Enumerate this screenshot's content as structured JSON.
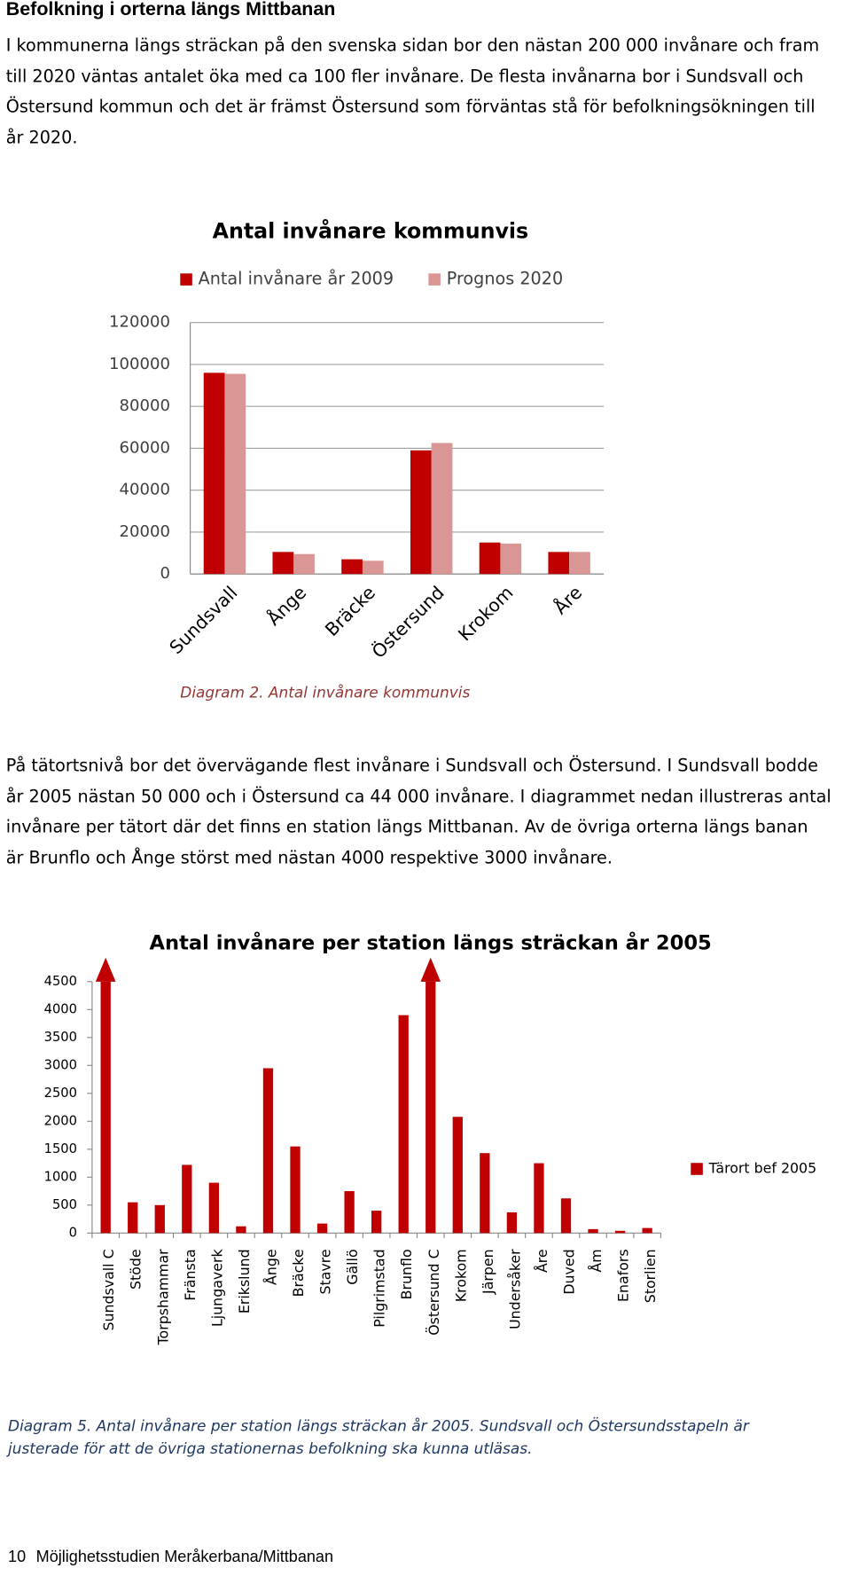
{
  "heading": "Befolkning i orterna längs Mittbanan",
  "intro": [
    "I kommunerna längs sträckan på den svenska sidan bor den nästan 200 000 invånare och fram",
    "till 2020 väntas antalet öka med ca 100 fler invånare. De flesta invånarna bor i Sundsvall och",
    "Östersund kommun och det är främst Östersund som förväntas stå för befolkningsökningen till",
    "år 2020."
  ],
  "chart_data": [
    {
      "type": "bar",
      "title": "Antal invånare kommunvis",
      "categories": [
        "Sundsvall",
        "Ånge",
        "Bräcke",
        "Östersund",
        "Krokom",
        "Åre"
      ],
      "series": [
        {
          "name": "Antal invånare år 2009",
          "color": "#c00000",
          "values": [
            96000,
            10500,
            7000,
            59000,
            15000,
            10500
          ]
        },
        {
          "name": "Prognos 2020",
          "color": "#d99694",
          "values": [
            95500,
            9500,
            6300,
            62500,
            14500,
            10500
          ]
        }
      ],
      "ylim": [
        0,
        120000
      ],
      "yticks": [
        0,
        20000,
        40000,
        60000,
        80000,
        100000,
        120000
      ],
      "grid": true,
      "legend": "top"
    },
    {
      "type": "bar",
      "title": "Antal invånare per station längs sträckan år 2005",
      "categories": [
        "Sundsvall C",
        "Stöde",
        "Torpshammar",
        "Fränsta",
        "Ljungaverk",
        "Erikslund",
        "Ånge",
        "Bräcke",
        "Stavre",
        "Gällö",
        "Pilgrimstad",
        "Brunflo",
        "Östersund C",
        "Krokom",
        "Järpen",
        "Undersåker",
        "Åre",
        "Duved",
        "Åm",
        "Enafors",
        "Storlien"
      ],
      "series": [
        {
          "name": "Tärort bef 2005",
          "color": "#c00000",
          "values": [
            4500,
            550,
            500,
            1220,
            900,
            120,
            2950,
            1550,
            170,
            750,
            400,
            3900,
            4500,
            2080,
            1430,
            370,
            1250,
            620,
            70,
            40,
            90
          ]
        }
      ],
      "ylim": [
        0,
        4500
      ],
      "yticks": [
        0,
        500,
        1000,
        1500,
        2000,
        2500,
        3000,
        3500,
        4000,
        4500
      ],
      "grid": false,
      "legend": "right"
    }
  ],
  "caption_1": "Diagram 2. Antal invånare kommunvis",
  "body": [
    "På tätortsnivå bor det övervägande flest invånare i Sundsvall och Östersund. I Sundsvall bodde",
    "år 2005 nästan 50 000 och i Östersund ca 44 000 invånare. I diagrammet nedan illustreras antal",
    "invånare per tätort där det finns en station längs Mittbanan. Av de övriga orterna längs banan",
    "är Brunflo och Ånge störst med nästan 4000 respektive 3000 invånare."
  ],
  "caption_2": [
    "Diagram 5. Antal invånare per station längs sträckan år 2005. Sundsvall och Östersundsstapeln är",
    "justerade för att de övriga stationernas befolkning ska kunna utläsas."
  ],
  "footer": {
    "page": "10",
    "title": "Möjlighetsstudien Meråkerbana/Mittbanan"
  }
}
